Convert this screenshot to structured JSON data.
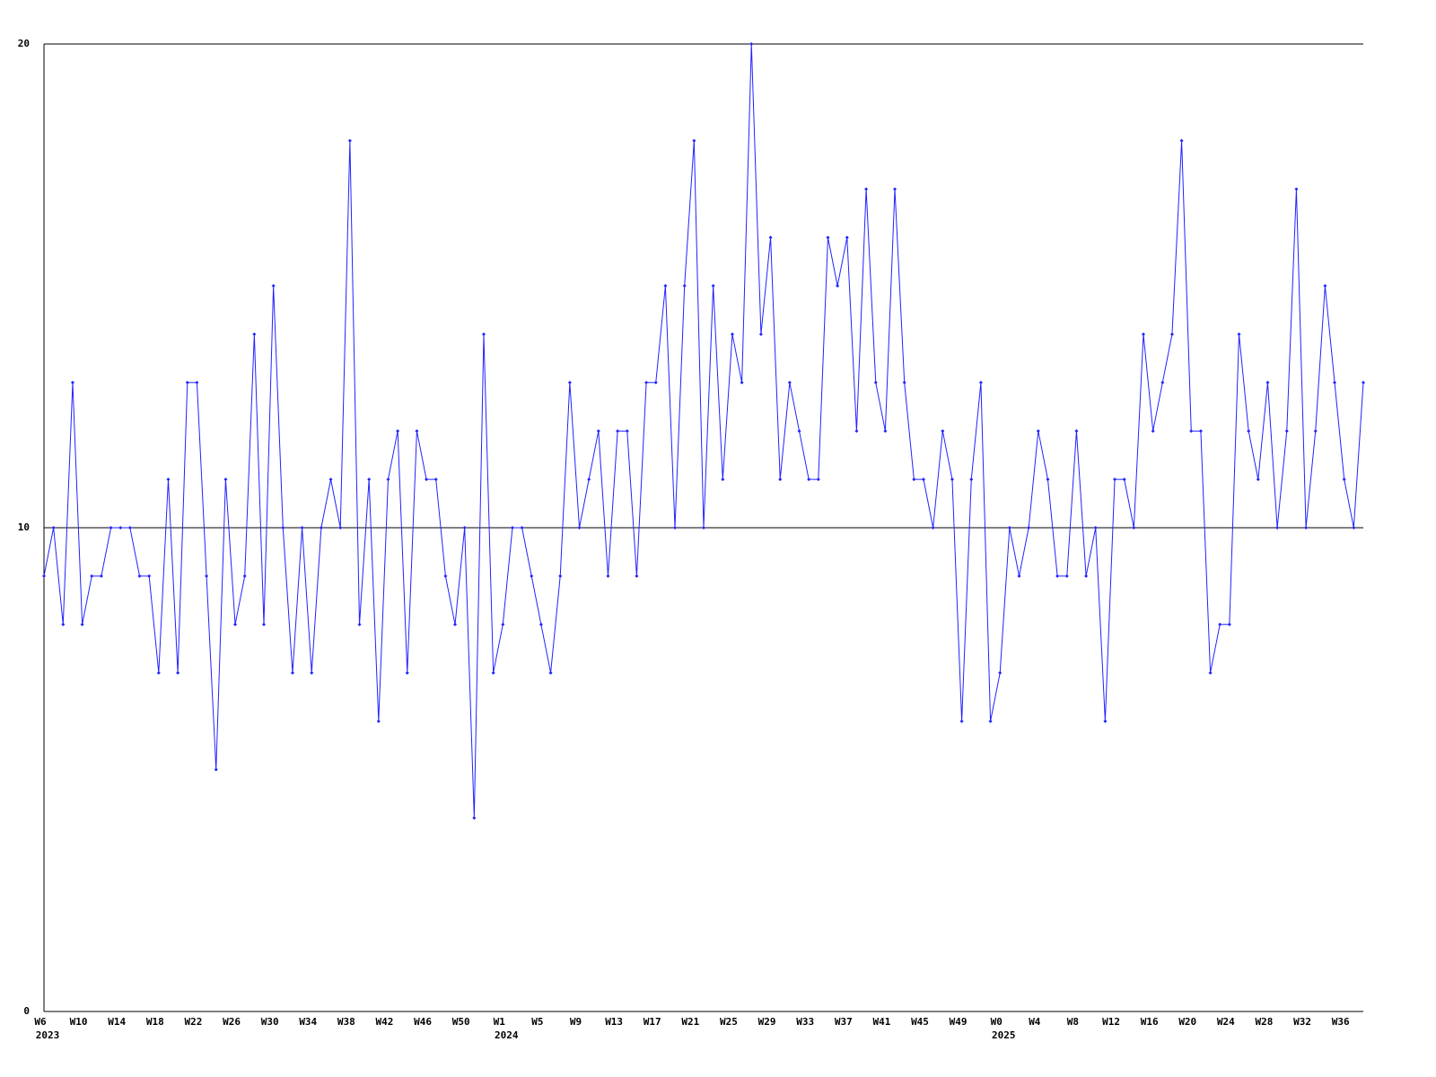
{
  "chart_data": {
    "type": "line",
    "categories": [
      "W6",
      null,
      null,
      null,
      "W10",
      null,
      null,
      null,
      "W14",
      null,
      null,
      null,
      "W18",
      null,
      null,
      null,
      "W22",
      null,
      null,
      null,
      "W26",
      null,
      null,
      null,
      "W30",
      null,
      null,
      null,
      "W34",
      null,
      null,
      null,
      "W38",
      null,
      null,
      null,
      "W42",
      null,
      null,
      null,
      "W46",
      null,
      null,
      null,
      "W50",
      null,
      null,
      null,
      "W1",
      null,
      null,
      null,
      "W5",
      null,
      null,
      null,
      "W9",
      null,
      null,
      null,
      "W13",
      null,
      null,
      null,
      "W17",
      null,
      null,
      null,
      "W21",
      null,
      null,
      null,
      "W25",
      null,
      null,
      null,
      "W29",
      null,
      null,
      null,
      "W33",
      null,
      null,
      null,
      "W37",
      null,
      null,
      null,
      "W41",
      null,
      null,
      null,
      "W45",
      null,
      null,
      null,
      "W49",
      null,
      null,
      null,
      "W0",
      null,
      null,
      null,
      "W4",
      null,
      null,
      null,
      "W8",
      null,
      null,
      null,
      "W12",
      null,
      null,
      null,
      "W16",
      null,
      null,
      null,
      "W20",
      null,
      null,
      null,
      "W24",
      null,
      null,
      null,
      "W28",
      null,
      null,
      null,
      "W32",
      null,
      null,
      null,
      "W36",
      null,
      null
    ],
    "category_years": [
      "2023",
      null,
      null,
      null,
      null,
      null,
      null,
      null,
      null,
      null,
      null,
      null,
      null,
      null,
      null,
      null,
      null,
      null,
      null,
      null,
      null,
      null,
      null,
      null,
      null,
      null,
      null,
      null,
      null,
      null,
      null,
      null,
      null,
      null,
      null,
      null,
      null,
      null,
      null,
      null,
      null,
      null,
      null,
      null,
      null,
      null,
      null,
      null,
      "2024",
      null,
      null,
      null,
      null,
      null,
      null,
      null,
      null,
      null,
      null,
      null,
      null,
      null,
      null,
      null,
      null,
      null,
      null,
      null,
      null,
      null,
      null,
      null,
      null,
      null,
      null,
      null,
      null,
      null,
      null,
      null,
      null,
      null,
      null,
      null,
      null,
      null,
      null,
      null,
      null,
      null,
      null,
      null,
      null,
      null,
      null,
      null,
      null,
      null,
      null,
      null,
      "2025",
      null,
      null,
      null,
      null,
      null,
      null,
      null,
      null,
      null,
      null,
      null,
      null,
      null,
      null,
      null,
      null,
      null,
      null,
      null,
      null,
      null,
      null,
      null,
      null,
      null,
      null,
      null,
      null,
      null,
      null,
      null,
      null,
      null,
      null,
      null,
      null,
      null,
      null
    ],
    "series": [
      {
        "color": "#2222ff",
        "values": [
          9,
          10,
          8,
          13,
          8,
          9,
          9,
          10,
          10,
          10,
          9,
          9,
          7,
          11,
          7,
          13,
          13,
          9,
          5,
          11,
          8,
          9,
          14,
          8,
          15,
          10,
          7,
          10,
          7,
          10,
          11,
          10,
          18,
          8,
          11,
          6,
          11,
          12,
          7,
          12,
          11,
          11,
          9,
          8,
          10,
          4,
          14,
          7,
          8,
          10,
          10,
          9,
          8,
          7,
          9,
          13,
          10,
          11,
          12,
          9,
          12,
          12,
          9,
          13,
          13,
          15,
          10,
          15,
          18,
          10,
          15,
          11,
          14,
          13,
          20,
          14,
          16,
          11,
          13,
          12,
          11,
          11,
          16,
          15,
          16,
          12,
          17,
          13,
          12,
          17,
          13,
          11,
          11,
          10,
          12,
          11,
          6,
          11,
          13,
          6,
          7,
          10,
          9,
          10,
          12,
          11,
          9,
          9,
          12,
          9,
          10,
          6,
          11,
          11,
          10,
          14,
          12,
          13,
          14,
          18,
          12,
          12,
          7,
          8,
          8,
          14,
          12,
          11,
          13,
          10,
          12,
          17,
          10,
          12,
          15,
          13,
          11,
          10,
          13
        ]
      }
    ],
    "ylim": [
      0,
      20
    ],
    "yticks": [
      0,
      10,
      20
    ],
    "grid": true
  }
}
